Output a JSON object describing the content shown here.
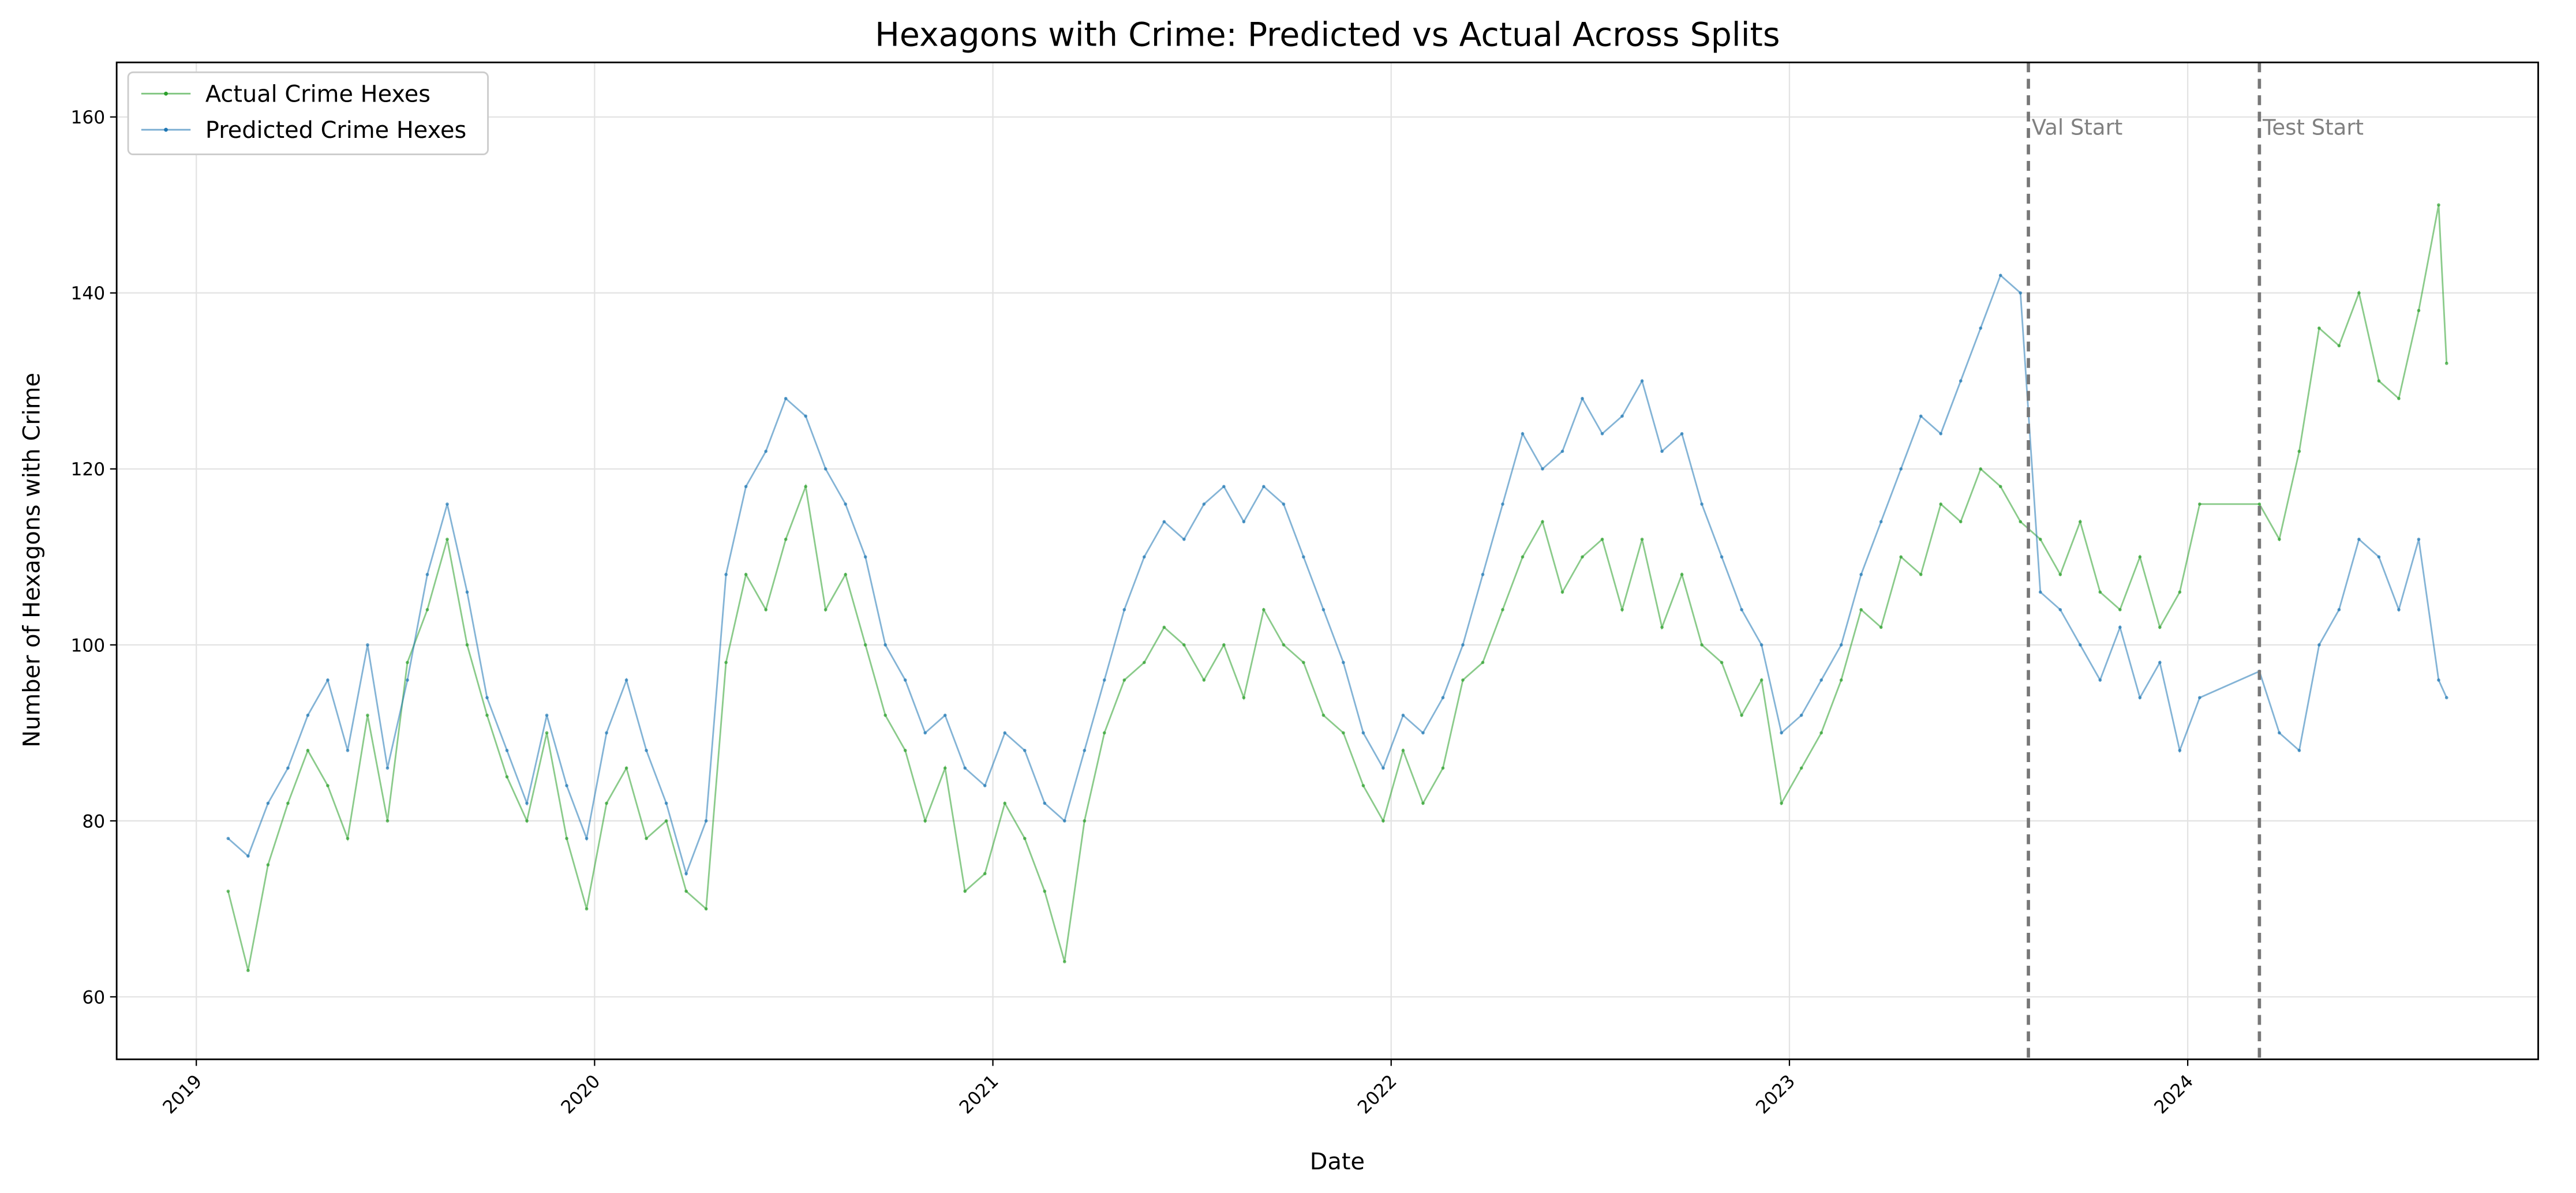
{
  "chart_data": {
    "type": "line",
    "title": "Hexagons with Crime: Predicted vs Actual Across Splits",
    "x_label": "Date",
    "y_label": "Number of Hexagons with Crime",
    "x": [
      2019.08,
      2019.13,
      2019.18,
      2019.23,
      2019.28,
      2019.33,
      2019.38,
      2019.43,
      2019.48,
      2019.53,
      2019.58,
      2019.63,
      2019.68,
      2019.73,
      2019.78,
      2019.83,
      2019.88,
      2019.93,
      2019.98,
      2020.03,
      2020.08,
      2020.13,
      2020.18,
      2020.23,
      2020.28,
      2020.33,
      2020.38,
      2020.43,
      2020.48,
      2020.53,
      2020.58,
      2020.63,
      2020.68,
      2020.73,
      2020.78,
      2020.83,
      2020.88,
      2020.93,
      2020.98,
      2021.03,
      2021.08,
      2021.13,
      2021.18,
      2021.23,
      2021.28,
      2021.33,
      2021.38,
      2021.43,
      2021.48,
      2021.53,
      2021.58,
      2021.63,
      2021.68,
      2021.73,
      2021.78,
      2021.83,
      2021.88,
      2021.93,
      2021.98,
      2022.03,
      2022.08,
      2022.13,
      2022.18,
      2022.23,
      2022.28,
      2022.33,
      2022.38,
      2022.43,
      2022.48,
      2022.53,
      2022.58,
      2022.63,
      2022.68,
      2022.73,
      2022.78,
      2022.83,
      2022.88,
      2022.93,
      2022.98,
      2023.03,
      2023.08,
      2023.13,
      2023.18,
      2023.23,
      2023.28,
      2023.33,
      2023.38,
      2023.43,
      2023.48,
      2023.53,
      2023.58,
      2023.63,
      2023.68,
      2023.73,
      2023.78,
      2023.83,
      2023.88,
      2023.93,
      2023.98,
      2024.03,
      2024.18,
      2024.23,
      2024.28,
      2024.33,
      2024.38,
      2024.43,
      2024.48,
      2024.53,
      2024.58,
      2024.63,
      2024.65
    ],
    "series": [
      {
        "name": "Actual Crime Hexes",
        "color": "#2ca02c",
        "values": [
          72,
          63,
          75,
          82,
          88,
          84,
          78,
          92,
          80,
          98,
          104,
          112,
          100,
          92,
          85,
          80,
          90,
          78,
          70,
          82,
          86,
          78,
          80,
          72,
          70,
          98,
          108,
          104,
          112,
          118,
          104,
          108,
          100,
          92,
          88,
          80,
          86,
          72,
          74,
          82,
          78,
          72,
          64,
          80,
          90,
          96,
          98,
          102,
          100,
          96,
          100,
          94,
          104,
          100,
          98,
          92,
          90,
          84,
          80,
          88,
          82,
          86,
          96,
          98,
          104,
          110,
          114,
          106,
          110,
          112,
          104,
          112,
          102,
          108,
          100,
          98,
          92,
          96,
          82,
          86,
          90,
          96,
          104,
          102,
          110,
          108,
          116,
          114,
          120,
          118,
          114,
          112,
          108,
          114,
          106,
          104,
          110,
          102,
          106,
          116,
          116,
          112,
          122,
          136,
          134,
          140,
          130,
          128,
          138,
          150,
          132
        ]
      },
      {
        "name": "Predicted Crime Hexes",
        "color": "#1f77b4",
        "values": [
          78,
          76,
          82,
          86,
          92,
          96,
          88,
          100,
          86,
          96,
          108,
          116,
          106,
          94,
          88,
          82,
          92,
          84,
          78,
          90,
          96,
          88,
          82,
          74,
          80,
          108,
          118,
          122,
          128,
          126,
          120,
          116,
          110,
          100,
          96,
          90,
          92,
          86,
          84,
          90,
          88,
          82,
          80,
          88,
          96,
          104,
          110,
          114,
          112,
          116,
          118,
          114,
          118,
          116,
          110,
          104,
          98,
          90,
          86,
          92,
          90,
          94,
          100,
          108,
          116,
          124,
          120,
          122,
          128,
          124,
          126,
          130,
          122,
          124,
          116,
          110,
          104,
          100,
          90,
          92,
          96,
          100,
          108,
          114,
          120,
          126,
          124,
          130,
          136,
          142,
          140,
          106,
          104,
          100,
          96,
          102,
          94,
          98,
          88,
          94,
          97,
          90,
          88,
          100,
          104,
          112,
          110,
          104,
          112,
          96,
          94
        ]
      }
    ],
    "annotations": [
      {
        "x": 2023.6,
        "label": "Val Start"
      },
      {
        "x": 2024.18,
        "label": "Test Start"
      }
    ],
    "xlim": [
      2018.8,
      2024.88
    ],
    "xticks": [
      2019,
      2020,
      2021,
      2022,
      2023,
      2024
    ],
    "ylim": [
      52.9,
      166.2
    ],
    "yticks": [
      60,
      80,
      100,
      120,
      140,
      160
    ],
    "grid": true,
    "legend": "upper left"
  }
}
